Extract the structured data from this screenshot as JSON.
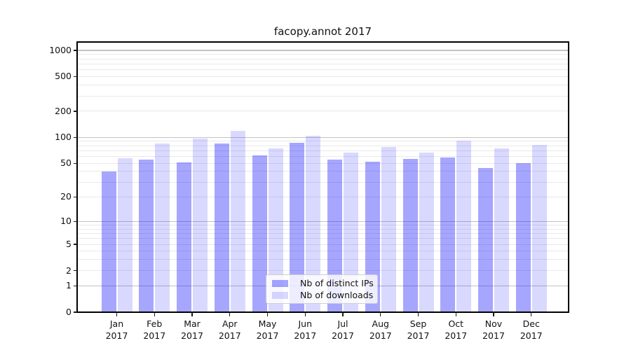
{
  "title": "facopy.annot 2017",
  "chart_data": {
    "type": "bar",
    "title": "facopy.annot 2017",
    "y_scale": "log1p",
    "ylim": [
      0,
      1250
    ],
    "grid": true,
    "legend_position": "lower center",
    "y_ticks": [
      {
        "value": 0,
        "label": "0"
      },
      {
        "value": 1,
        "label": "1"
      },
      {
        "value": 2,
        "label": "2"
      },
      {
        "value": 5,
        "label": "5"
      },
      {
        "value": 10,
        "label": "10"
      },
      {
        "value": 20,
        "label": "20"
      },
      {
        "value": 50,
        "label": "50"
      },
      {
        "value": 100,
        "label": "100"
      },
      {
        "value": 200,
        "label": "200"
      },
      {
        "value": 500,
        "label": "500"
      },
      {
        "value": 1000,
        "label": "1000"
      }
    ],
    "y_major_gridlines": [
      1,
      10,
      100,
      1000
    ],
    "categories": [
      {
        "month": "Jan",
        "year": "2017"
      },
      {
        "month": "Feb",
        "year": "2017"
      },
      {
        "month": "Mar",
        "year": "2017"
      },
      {
        "month": "Apr",
        "year": "2017"
      },
      {
        "month": "May",
        "year": "2017"
      },
      {
        "month": "Jun",
        "year": "2017"
      },
      {
        "month": "Jul",
        "year": "2017"
      },
      {
        "month": "Aug",
        "year": "2017"
      },
      {
        "month": "Sep",
        "year": "2017"
      },
      {
        "month": "Oct",
        "year": "2017"
      },
      {
        "month": "Nov",
        "year": "2017"
      },
      {
        "month": "Dec",
        "year": "2017"
      }
    ],
    "series": [
      {
        "name": "Nb of distinct IPs",
        "color": "rgba(0,0,255,0.35)",
        "values": [
          40,
          55,
          51,
          85,
          62,
          86,
          55,
          52,
          56,
          58,
          44,
          50
        ]
      },
      {
        "name": "Nb of downloads",
        "color": "rgba(0,0,255,0.15)",
        "values": [
          57,
          85,
          97,
          119,
          74,
          104,
          66,
          77,
          66,
          91,
          75,
          82
        ]
      }
    ]
  },
  "colors": {
    "major_grid": "#c3c3c3",
    "minor_grid": "#e9e9e9",
    "spine": "#000000",
    "text": "#111111",
    "background": "#ffffff"
  }
}
